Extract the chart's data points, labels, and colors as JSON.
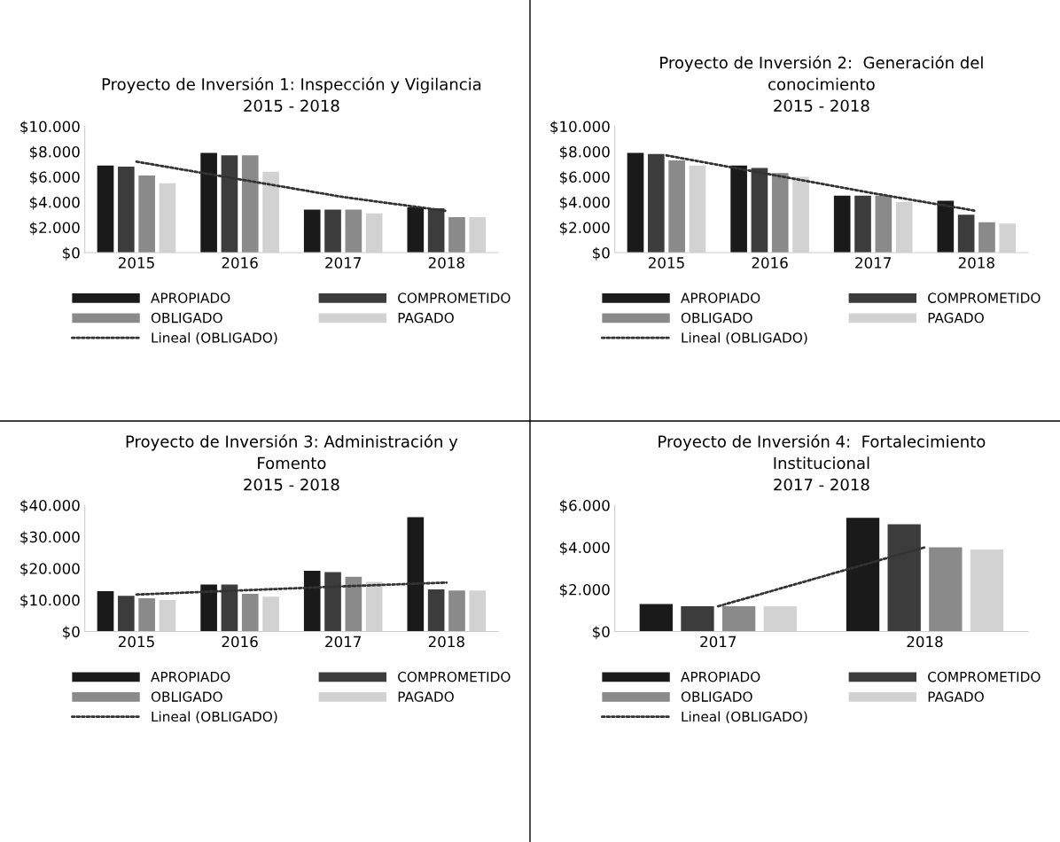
{
  "chart_data": [
    {
      "type": "bar",
      "title": "Proyecto de Inversión 1: Inspección y Vigilancia\n2015 - 2018",
      "categories": [
        "2015",
        "2016",
        "2017",
        "2018"
      ],
      "series": [
        {
          "name": "APROPIADO",
          "color": "#1a1a1a",
          "values": [
            6900,
            7900,
            3400,
            3600
          ]
        },
        {
          "name": "COMPROMETIDO",
          "color": "#3c3c3c",
          "values": [
            6800,
            7700,
            3400,
            3500
          ]
        },
        {
          "name": "OBLIGADO",
          "color": "#8a8a8a",
          "values": [
            6100,
            7700,
            3400,
            2800
          ]
        },
        {
          "name": "PAGADO",
          "color": "#d2d2d2",
          "values": [
            5500,
            6400,
            3100,
            2800
          ]
        },
        {
          "name": "Lineal (OBLIGADO)",
          "type": "line",
          "line_style": "dotted",
          "color": "#333333",
          "values": [
            7200,
            5800,
            4400,
            3300
          ]
        }
      ],
      "ylim": [
        0,
        10000
      ],
      "yticks": [
        {
          "value": 0,
          "label": "$0"
        },
        {
          "value": 2000,
          "label": "$2.000"
        },
        {
          "value": 4000,
          "label": "$4.000"
        },
        {
          "value": 6000,
          "label": "$6.000"
        },
        {
          "value": 8000,
          "label": "$8.000"
        },
        {
          "value": 10000,
          "label": "$10.000"
        }
      ],
      "grid": false,
      "legend": "bottom"
    },
    {
      "type": "bar",
      "title": "Proyecto de Inversión 2:  Generación del\nconocimiento\n2015 - 2018",
      "categories": [
        "2015",
        "2016",
        "2017",
        "2018"
      ],
      "series": [
        {
          "name": "APROPIADO",
          "color": "#1a1a1a",
          "values": [
            7900,
            6900,
            4500,
            4100
          ]
        },
        {
          "name": "COMPROMETIDO",
          "color": "#3c3c3c",
          "values": [
            7800,
            6700,
            4500,
            3000
          ]
        },
        {
          "name": "OBLIGADO",
          "color": "#8a8a8a",
          "values": [
            7300,
            6300,
            4500,
            2400
          ]
        },
        {
          "name": "PAGADO",
          "color": "#d2d2d2",
          "values": [
            6900,
            6000,
            4000,
            2300
          ]
        },
        {
          "name": "Lineal (OBLIGADO)",
          "type": "line",
          "line_style": "dotted",
          "color": "#333333",
          "values": [
            7700,
            6200,
            4700,
            3300
          ]
        }
      ],
      "ylim": [
        0,
        10000
      ],
      "yticks": [
        {
          "value": 0,
          "label": "$0"
        },
        {
          "value": 2000,
          "label": "$2.000"
        },
        {
          "value": 4000,
          "label": "$4.000"
        },
        {
          "value": 6000,
          "label": "$6.000"
        },
        {
          "value": 8000,
          "label": "$8.000"
        },
        {
          "value": 10000,
          "label": "$10.000"
        }
      ],
      "grid": false,
      "legend": "bottom"
    },
    {
      "type": "bar",
      "title": "Proyecto de Inversión 3: Administración y\nFomento\n2015 - 2018",
      "categories": [
        "2015",
        "2016",
        "2017",
        "2018"
      ],
      "series": [
        {
          "name": "APROPIADO",
          "color": "#1a1a1a",
          "values": [
            12800,
            14900,
            19200,
            36200
          ]
        },
        {
          "name": "COMPROMETIDO",
          "color": "#3c3c3c",
          "values": [
            11300,
            14900,
            18800,
            13300
          ]
        },
        {
          "name": "OBLIGADO",
          "color": "#8a8a8a",
          "values": [
            10500,
            11900,
            17300,
            13000
          ]
        },
        {
          "name": "PAGADO",
          "color": "#d2d2d2",
          "values": [
            10000,
            11000,
            15700,
            13000
          ]
        },
        {
          "name": "Lineal (OBLIGADO)",
          "type": "line",
          "line_style": "dotted",
          "color": "#333333",
          "values": [
            11700,
            13000,
            14300,
            15500
          ]
        }
      ],
      "ylim": [
        0,
        40000
      ],
      "yticks": [
        {
          "value": 0,
          "label": "$0"
        },
        {
          "value": 10000,
          "label": "$10.000"
        },
        {
          "value": 20000,
          "label": "$20.000"
        },
        {
          "value": 30000,
          "label": "$30.000"
        },
        {
          "value": 40000,
          "label": "$40.000"
        }
      ],
      "grid": false,
      "legend": "bottom"
    },
    {
      "type": "bar",
      "title": "Proyecto de Inversión 4:  Fortalecimiento\nInstitucional\n2017 - 2018",
      "categories": [
        "2017",
        "2018"
      ],
      "series": [
        {
          "name": "APROPIADO",
          "color": "#1a1a1a",
          "values": [
            1300,
            5400
          ]
        },
        {
          "name": "COMPROMETIDO",
          "color": "#3c3c3c",
          "values": [
            1200,
            5100
          ]
        },
        {
          "name": "OBLIGADO",
          "color": "#8a8a8a",
          "values": [
            1200,
            4000
          ]
        },
        {
          "name": "PAGADO",
          "color": "#d2d2d2",
          "values": [
            1200,
            3900
          ]
        },
        {
          "name": "Lineal (OBLIGADO)",
          "type": "line",
          "line_style": "dotted",
          "color": "#333333",
          "values": [
            1200,
            4000
          ]
        }
      ],
      "ylim": [
        0,
        6000
      ],
      "yticks": [
        {
          "value": 0,
          "label": "$0"
        },
        {
          "value": 2000,
          "label": "$2.000"
        },
        {
          "value": 4000,
          "label": "$4.000"
        },
        {
          "value": 6000,
          "label": "$6.000"
        }
      ],
      "grid": false,
      "legend": "bottom"
    }
  ]
}
